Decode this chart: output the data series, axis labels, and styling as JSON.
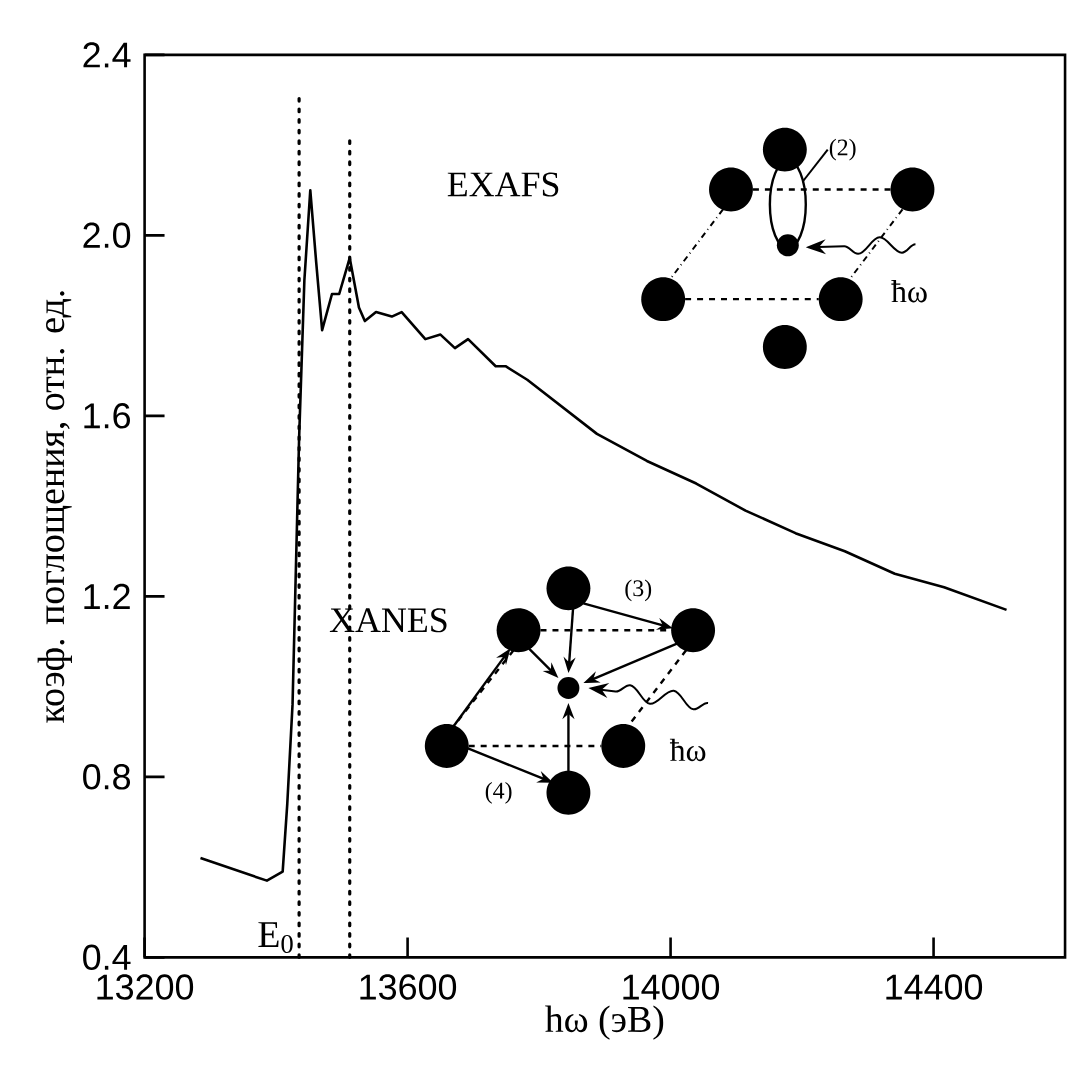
{
  "chart_data": {
    "type": "line",
    "xlabel": "hω (эВ)",
    "ylabel": "коэф. поглощения, отн. ед.",
    "xlim": [
      13200,
      14600
    ],
    "ylim": [
      0.4,
      2.4
    ],
    "xticks": [
      13200,
      13600,
      14000,
      14400
    ],
    "yticks": [
      0.4,
      0.8,
      1.2,
      1.6,
      {
        "value": 2.0,
        "label": "2.0"
      },
      2.4
    ],
    "series": [
      {
        "color": "#000000",
        "x": [
          13285,
          13386,
          13410,
          13417,
          13425,
          13435,
          13443,
          13452,
          13461,
          13470,
          13485,
          13496,
          13512,
          13526,
          13535,
          13552,
          13576,
          13591,
          13627,
          13650,
          13672,
          13692,
          13734,
          13749,
          13782,
          13888,
          13964,
          14039,
          14114,
          14190,
          14265,
          14341,
          14416,
          14511
        ],
        "values": [
          0.62,
          0.57,
          0.59,
          0.74,
          0.96,
          1.55,
          1.9,
          2.1,
          1.94,
          1.79,
          1.87,
          1.87,
          1.95,
          1.84,
          1.81,
          1.83,
          1.82,
          1.83,
          1.77,
          1.78,
          1.75,
          1.77,
          1.71,
          1.71,
          1.68,
          1.56,
          1.5,
          1.45,
          1.39,
          1.34,
          1.3,
          1.25,
          1.22,
          1.17
        ]
      }
    ],
    "ref_lines": [
      {
        "axis": "x",
        "value": 13435,
        "label": "E$_{0}$",
        "line_style": "dotted",
        "color": "#000000"
      },
      {
        "axis": "x",
        "value": 13512,
        "line_style": "dotted",
        "color": "#000000"
      }
    ],
    "annotations": [
      "EXAFS",
      "XANES",
      "(2)",
      "ħω",
      "(3)",
      "(4)",
      "ħω"
    ],
    "grid": false,
    "marker": "none",
    "line_style": "solid"
  }
}
